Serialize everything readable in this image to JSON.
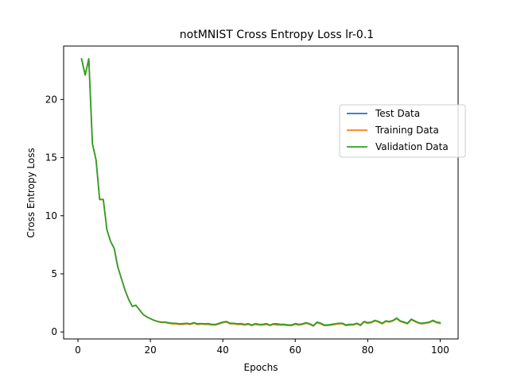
{
  "chart_data": {
    "type": "line",
    "title": "notMNIST Cross Entropy Loss lr-0.1",
    "xlabel": "Epochs",
    "ylabel": "Cross Entropy Loss",
    "xlim": [
      -3.95,
      104.95
    ],
    "ylim": [
      -0.6,
      24.6
    ],
    "xticks": [
      0,
      20,
      40,
      60,
      80,
      100
    ],
    "yticks": [
      0,
      5,
      10,
      15,
      20
    ],
    "grid": false,
    "legend_position": "right",
    "x": [
      1,
      2,
      3,
      4,
      5,
      6,
      7,
      8,
      9,
      10,
      11,
      12,
      13,
      14,
      15,
      16,
      17,
      18,
      19,
      20,
      21,
      22,
      23,
      24,
      25,
      26,
      27,
      28,
      29,
      30,
      31,
      32,
      33,
      34,
      35,
      36,
      37,
      38,
      39,
      40,
      41,
      42,
      43,
      44,
      45,
      46,
      47,
      48,
      49,
      50,
      51,
      52,
      53,
      54,
      55,
      56,
      57,
      58,
      59,
      60,
      61,
      62,
      63,
      64,
      65,
      66,
      67,
      68,
      69,
      70,
      71,
      72,
      73,
      74,
      75,
      76,
      77,
      78,
      79,
      80,
      81,
      82,
      83,
      84,
      85,
      86,
      87,
      88,
      89,
      90,
      91,
      92,
      93,
      94,
      95,
      96,
      97,
      98,
      99,
      100
    ],
    "series": [
      {
        "name": "Test Data",
        "color": "#1f77b4",
        "values": [
          23.5,
          22.1,
          23.5,
          16.2,
          14.8,
          11.4,
          11.4,
          8.8,
          7.8,
          7.2,
          5.6,
          4.6,
          3.6,
          2.8,
          2.2,
          2.3,
          1.9,
          1.5,
          1.3,
          1.15,
          1.0,
          0.9,
          0.85,
          0.85,
          0.8,
          0.75,
          0.75,
          0.7,
          0.72,
          0.75,
          0.7,
          0.8,
          0.7,
          0.72,
          0.7,
          0.72,
          0.65,
          0.65,
          0.75,
          0.85,
          0.9,
          0.75,
          0.75,
          0.7,
          0.72,
          0.65,
          0.72,
          0.6,
          0.72,
          0.65,
          0.65,
          0.72,
          0.6,
          0.7,
          0.7,
          0.65,
          0.65,
          0.6,
          0.6,
          0.72,
          0.65,
          0.7,
          0.8,
          0.7,
          0.55,
          0.85,
          0.75,
          0.6,
          0.6,
          0.65,
          0.7,
          0.75,
          0.75,
          0.6,
          0.65,
          0.65,
          0.75,
          0.6,
          0.9,
          0.8,
          0.85,
          1.0,
          0.9,
          0.75,
          0.95,
          0.9,
          1.0,
          1.2,
          0.95,
          0.85,
          0.75,
          1.1,
          0.95,
          0.8,
          0.75,
          0.8,
          0.85,
          1.0,
          0.85,
          0.8
        ],
        "visible": false
      },
      {
        "name": "Training Data",
        "color": "#ff7f0e",
        "values": [
          23.5,
          22.1,
          23.5,
          16.2,
          14.8,
          11.4,
          11.4,
          8.8,
          7.8,
          7.2,
          5.6,
          4.6,
          3.6,
          2.8,
          2.2,
          2.3,
          1.9,
          1.5,
          1.3,
          1.15,
          1.0,
          0.9,
          0.82,
          0.82,
          0.75,
          0.7,
          0.7,
          0.65,
          0.65,
          0.7,
          0.65,
          0.75,
          0.65,
          0.68,
          0.65,
          0.65,
          0.6,
          0.6,
          0.7,
          0.8,
          0.85,
          0.7,
          0.7,
          0.65,
          0.65,
          0.6,
          0.65,
          0.55,
          0.65,
          0.6,
          0.6,
          0.65,
          0.55,
          0.65,
          0.6,
          0.6,
          0.6,
          0.55,
          0.55,
          0.65,
          0.6,
          0.65,
          0.75,
          0.65,
          0.5,
          0.8,
          0.7,
          0.55,
          0.55,
          0.6,
          0.65,
          0.7,
          0.7,
          0.55,
          0.6,
          0.6,
          0.7,
          0.55,
          0.85,
          0.75,
          0.8,
          0.95,
          0.85,
          0.7,
          0.9,
          0.85,
          0.95,
          1.15,
          0.9,
          0.8,
          0.7,
          1.05,
          0.9,
          0.75,
          0.7,
          0.75,
          0.8,
          0.95,
          0.8,
          0.72
        ]
      },
      {
        "name": "Validation Data",
        "color": "#2ca02c",
        "values": [
          23.5,
          22.1,
          23.5,
          16.2,
          14.8,
          11.4,
          11.4,
          8.8,
          7.8,
          7.2,
          5.6,
          4.6,
          3.6,
          2.8,
          2.2,
          2.3,
          1.9,
          1.5,
          1.3,
          1.15,
          1.0,
          0.9,
          0.85,
          0.85,
          0.8,
          0.75,
          0.75,
          0.7,
          0.72,
          0.75,
          0.7,
          0.8,
          0.7,
          0.72,
          0.7,
          0.72,
          0.65,
          0.65,
          0.75,
          0.85,
          0.9,
          0.75,
          0.75,
          0.7,
          0.72,
          0.65,
          0.72,
          0.6,
          0.72,
          0.65,
          0.65,
          0.72,
          0.6,
          0.7,
          0.7,
          0.65,
          0.65,
          0.6,
          0.6,
          0.72,
          0.65,
          0.7,
          0.8,
          0.7,
          0.55,
          0.85,
          0.75,
          0.6,
          0.6,
          0.65,
          0.7,
          0.75,
          0.75,
          0.6,
          0.65,
          0.65,
          0.75,
          0.6,
          0.9,
          0.8,
          0.85,
          1.0,
          0.9,
          0.75,
          0.95,
          0.9,
          1.0,
          1.2,
          0.95,
          0.85,
          0.75,
          1.1,
          0.95,
          0.8,
          0.75,
          0.8,
          0.85,
          1.0,
          0.85,
          0.8
        ]
      }
    ]
  }
}
